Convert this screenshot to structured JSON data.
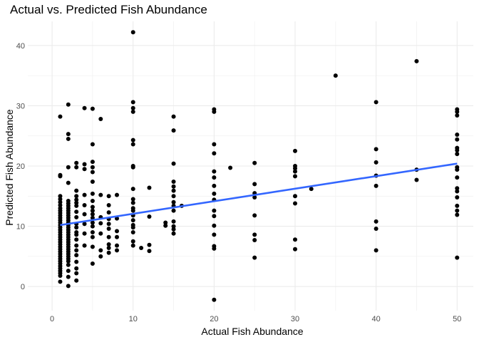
{
  "chart_data": {
    "type": "scatter",
    "title": "Actual vs. Predicted Fish Abundance",
    "xlabel": "Actual Fish Abundance",
    "ylabel": "Predicted Fish Abundance",
    "xlim": [
      -3,
      52
    ],
    "ylim": [
      -4,
      44
    ],
    "x_ticks": [
      0,
      10,
      20,
      30,
      40,
      50
    ],
    "y_ticks": [
      0,
      10,
      20,
      30,
      40
    ],
    "x_tick_labels": [
      "0",
      "10",
      "20",
      "30",
      "40",
      "50"
    ],
    "y_tick_labels": [
      "0",
      "10",
      "20",
      "30",
      "40"
    ],
    "grid": true,
    "point_color": "#000000",
    "line_color": "#3366FF",
    "trend_line": {
      "x": [
        1,
        50
      ],
      "y": [
        10.2,
        20.4
      ]
    },
    "points": [
      [
        1,
        28.2
      ],
      [
        1,
        18.5
      ],
      [
        1,
        18.3
      ],
      [
        1,
        15.0
      ],
      [
        1,
        14.5
      ],
      [
        1,
        14.0
      ],
      [
        1,
        13.5
      ],
      [
        1,
        13.0
      ],
      [
        1,
        12.6
      ],
      [
        1,
        12.2
      ],
      [
        1,
        11.8
      ],
      [
        1,
        11.4
      ],
      [
        1,
        11.0
      ],
      [
        1,
        10.6
      ],
      [
        1,
        10.2
      ],
      [
        1,
        9.8
      ],
      [
        1,
        9.4
      ],
      [
        1,
        9.0
      ],
      [
        1,
        8.6
      ],
      [
        1,
        8.2
      ],
      [
        1,
        7.8
      ],
      [
        1,
        7.4
      ],
      [
        1,
        7.0
      ],
      [
        1,
        6.6
      ],
      [
        1,
        6.2
      ],
      [
        1,
        5.8
      ],
      [
        1,
        5.4
      ],
      [
        1,
        5.0
      ],
      [
        1,
        4.6
      ],
      [
        1,
        4.2
      ],
      [
        1,
        3.8
      ],
      [
        1,
        3.4
      ],
      [
        1,
        3.0
      ],
      [
        1,
        2.6
      ],
      [
        1,
        2.2
      ],
      [
        1,
        1.8
      ],
      [
        1,
        0.8
      ],
      [
        2,
        30.2
      ],
      [
        2,
        25.3
      ],
      [
        2,
        24.5
      ],
      [
        2,
        19.8
      ],
      [
        2,
        17.2
      ],
      [
        2,
        14.2
      ],
      [
        2,
        13.8
      ],
      [
        2,
        13.4
      ],
      [
        2,
        13.0
      ],
      [
        2,
        12.6
      ],
      [
        2,
        12.2
      ],
      [
        2,
        11.8
      ],
      [
        2,
        11.4
      ],
      [
        2,
        11.0
      ],
      [
        2,
        10.6
      ],
      [
        2,
        10.2
      ],
      [
        2,
        9.8
      ],
      [
        2,
        9.4
      ],
      [
        2,
        9.0
      ],
      [
        2,
        8.6
      ],
      [
        2,
        8.2
      ],
      [
        2,
        7.8
      ],
      [
        2,
        7.4
      ],
      [
        2,
        7.0
      ],
      [
        2,
        6.6
      ],
      [
        2,
        6.2
      ],
      [
        2,
        5.8
      ],
      [
        2,
        5.4
      ],
      [
        2,
        5.0
      ],
      [
        2,
        4.6
      ],
      [
        2,
        4.2
      ],
      [
        2,
        3.6
      ],
      [
        2,
        2.6
      ],
      [
        2,
        1.6
      ],
      [
        2,
        0.1
      ],
      [
        3,
        20.5
      ],
      [
        3,
        19.8
      ],
      [
        3,
        15.9
      ],
      [
        3,
        15.0
      ],
      [
        3,
        14.4
      ],
      [
        3,
        13.9
      ],
      [
        3,
        13.4
      ],
      [
        3,
        12.4
      ],
      [
        3,
        11.5
      ],
      [
        3,
        10.4
      ],
      [
        3,
        9.8
      ],
      [
        3,
        9.0
      ],
      [
        3,
        8.6
      ],
      [
        3,
        7.8
      ],
      [
        3,
        6.8
      ],
      [
        3,
        6.0
      ],
      [
        3,
        5.2
      ],
      [
        3,
        4.1
      ],
      [
        3,
        3.0
      ],
      [
        3,
        2.2
      ],
      [
        3,
        1.0
      ],
      [
        4,
        29.6
      ],
      [
        4,
        20.3
      ],
      [
        4,
        19.5
      ],
      [
        4,
        15.2
      ],
      [
        4,
        13.5
      ],
      [
        4,
        12.0
      ],
      [
        4,
        10.4
      ],
      [
        4,
        8.8
      ],
      [
        4,
        6.8
      ],
      [
        5,
        29.5
      ],
      [
        5,
        23.6
      ],
      [
        5,
        20.7
      ],
      [
        5,
        19.8
      ],
      [
        5,
        19.0
      ],
      [
        5,
        17.4
      ],
      [
        5,
        15.4
      ],
      [
        5,
        14.2
      ],
      [
        5,
        13.2
      ],
      [
        5,
        12.6
      ],
      [
        5,
        12.0
      ],
      [
        5,
        11.4
      ],
      [
        5,
        10.6
      ],
      [
        5,
        10.0
      ],
      [
        5,
        9.0
      ],
      [
        5,
        8.2
      ],
      [
        5,
        6.6
      ],
      [
        5,
        3.8
      ],
      [
        6,
        27.8
      ],
      [
        6,
        15.2
      ],
      [
        6,
        11.5
      ],
      [
        6,
        10.5
      ],
      [
        6,
        8.8
      ],
      [
        6,
        6.0
      ],
      [
        6,
        5.0
      ],
      [
        7,
        15.0
      ],
      [
        7,
        13.5
      ],
      [
        7,
        12.3
      ],
      [
        7,
        11.2
      ],
      [
        7,
        10.4
      ],
      [
        7,
        9.6
      ],
      [
        7,
        8.2
      ],
      [
        7,
        7.0
      ],
      [
        7,
        6.4
      ],
      [
        7,
        5.6
      ],
      [
        8,
        15.2
      ],
      [
        8,
        11.3
      ],
      [
        8,
        9.2
      ],
      [
        8,
        8.2
      ],
      [
        8,
        6.8
      ],
      [
        8,
        6.0
      ],
      [
        10,
        42.2
      ],
      [
        10,
        30.6
      ],
      [
        10,
        29.6
      ],
      [
        10,
        29.0
      ],
      [
        10,
        24.3
      ],
      [
        10,
        23.6
      ],
      [
        10,
        20.0
      ],
      [
        10,
        19.8
      ],
      [
        10,
        16.2
      ],
      [
        10,
        14.5
      ],
      [
        10,
        13.9
      ],
      [
        10,
        13.0
      ],
      [
        10,
        12.6
      ],
      [
        10,
        11.8
      ],
      [
        10,
        11.0
      ],
      [
        10,
        10.2
      ],
      [
        10,
        9.8
      ],
      [
        10,
        9.0
      ],
      [
        10,
        7.5
      ],
      [
        10,
        6.8
      ],
      [
        11,
        6.4
      ],
      [
        12,
        16.4
      ],
      [
        12,
        11.6
      ],
      [
        12,
        6.9
      ],
      [
        12,
        5.9
      ],
      [
        14,
        10.6
      ],
      [
        14,
        10.1
      ],
      [
        15,
        28.2
      ],
      [
        15,
        25.9
      ],
      [
        15,
        20.4
      ],
      [
        15,
        17.4
      ],
      [
        15,
        16.6
      ],
      [
        15,
        15.9
      ],
      [
        15,
        15.0
      ],
      [
        15,
        14.0
      ],
      [
        15,
        13.4
      ],
      [
        15,
        12.6
      ],
      [
        15,
        10.8
      ],
      [
        15,
        10.0
      ],
      [
        15,
        9.5
      ],
      [
        15,
        8.8
      ],
      [
        16,
        13.4
      ],
      [
        20,
        29.4
      ],
      [
        20,
        29.0
      ],
      [
        20,
        23.6
      ],
      [
        20,
        22.1
      ],
      [
        20,
        19.1
      ],
      [
        20,
        18.1
      ],
      [
        20,
        16.7
      ],
      [
        20,
        15.4
      ],
      [
        20,
        14.4
      ],
      [
        20,
        12.6
      ],
      [
        20,
        11.7
      ],
      [
        20,
        10.1
      ],
      [
        20,
        8.6
      ],
      [
        20,
        6.7
      ],
      [
        20,
        6.3
      ],
      [
        20,
        -2.2
      ],
      [
        22,
        19.7
      ],
      [
        25,
        20.5
      ],
      [
        25,
        17.0
      ],
      [
        25,
        15.5
      ],
      [
        25,
        14.8
      ],
      [
        25,
        11.8
      ],
      [
        25,
        8.6
      ],
      [
        25,
        7.7
      ],
      [
        25,
        4.8
      ],
      [
        30,
        22.5
      ],
      [
        30,
        20.0
      ],
      [
        30,
        19.6
      ],
      [
        30,
        19.1
      ],
      [
        30,
        18.3
      ],
      [
        30,
        15.0
      ],
      [
        30,
        13.8
      ],
      [
        30,
        7.8
      ],
      [
        30,
        6.2
      ],
      [
        32,
        16.2
      ],
      [
        35,
        35.0
      ],
      [
        40,
        30.6
      ],
      [
        40,
        22.8
      ],
      [
        40,
        20.6
      ],
      [
        40,
        18.4
      ],
      [
        40,
        16.7
      ],
      [
        40,
        10.8
      ],
      [
        40,
        9.6
      ],
      [
        40,
        6.0
      ],
      [
        45,
        37.4
      ],
      [
        45,
        19.4
      ],
      [
        45,
        17.7
      ],
      [
        50,
        29.4
      ],
      [
        50,
        29.0
      ],
      [
        50,
        28.4
      ],
      [
        50,
        25.2
      ],
      [
        50,
        24.4
      ],
      [
        50,
        23.0
      ],
      [
        50,
        22.6
      ],
      [
        50,
        22.0
      ],
      [
        50,
        19.8
      ],
      [
        50,
        19.4
      ],
      [
        50,
        18.1
      ],
      [
        50,
        16.3
      ],
      [
        50,
        15.8
      ],
      [
        50,
        14.8
      ],
      [
        50,
        13.4
      ],
      [
        50,
        12.6
      ],
      [
        50,
        11.9
      ],
      [
        50,
        4.8
      ]
    ]
  }
}
